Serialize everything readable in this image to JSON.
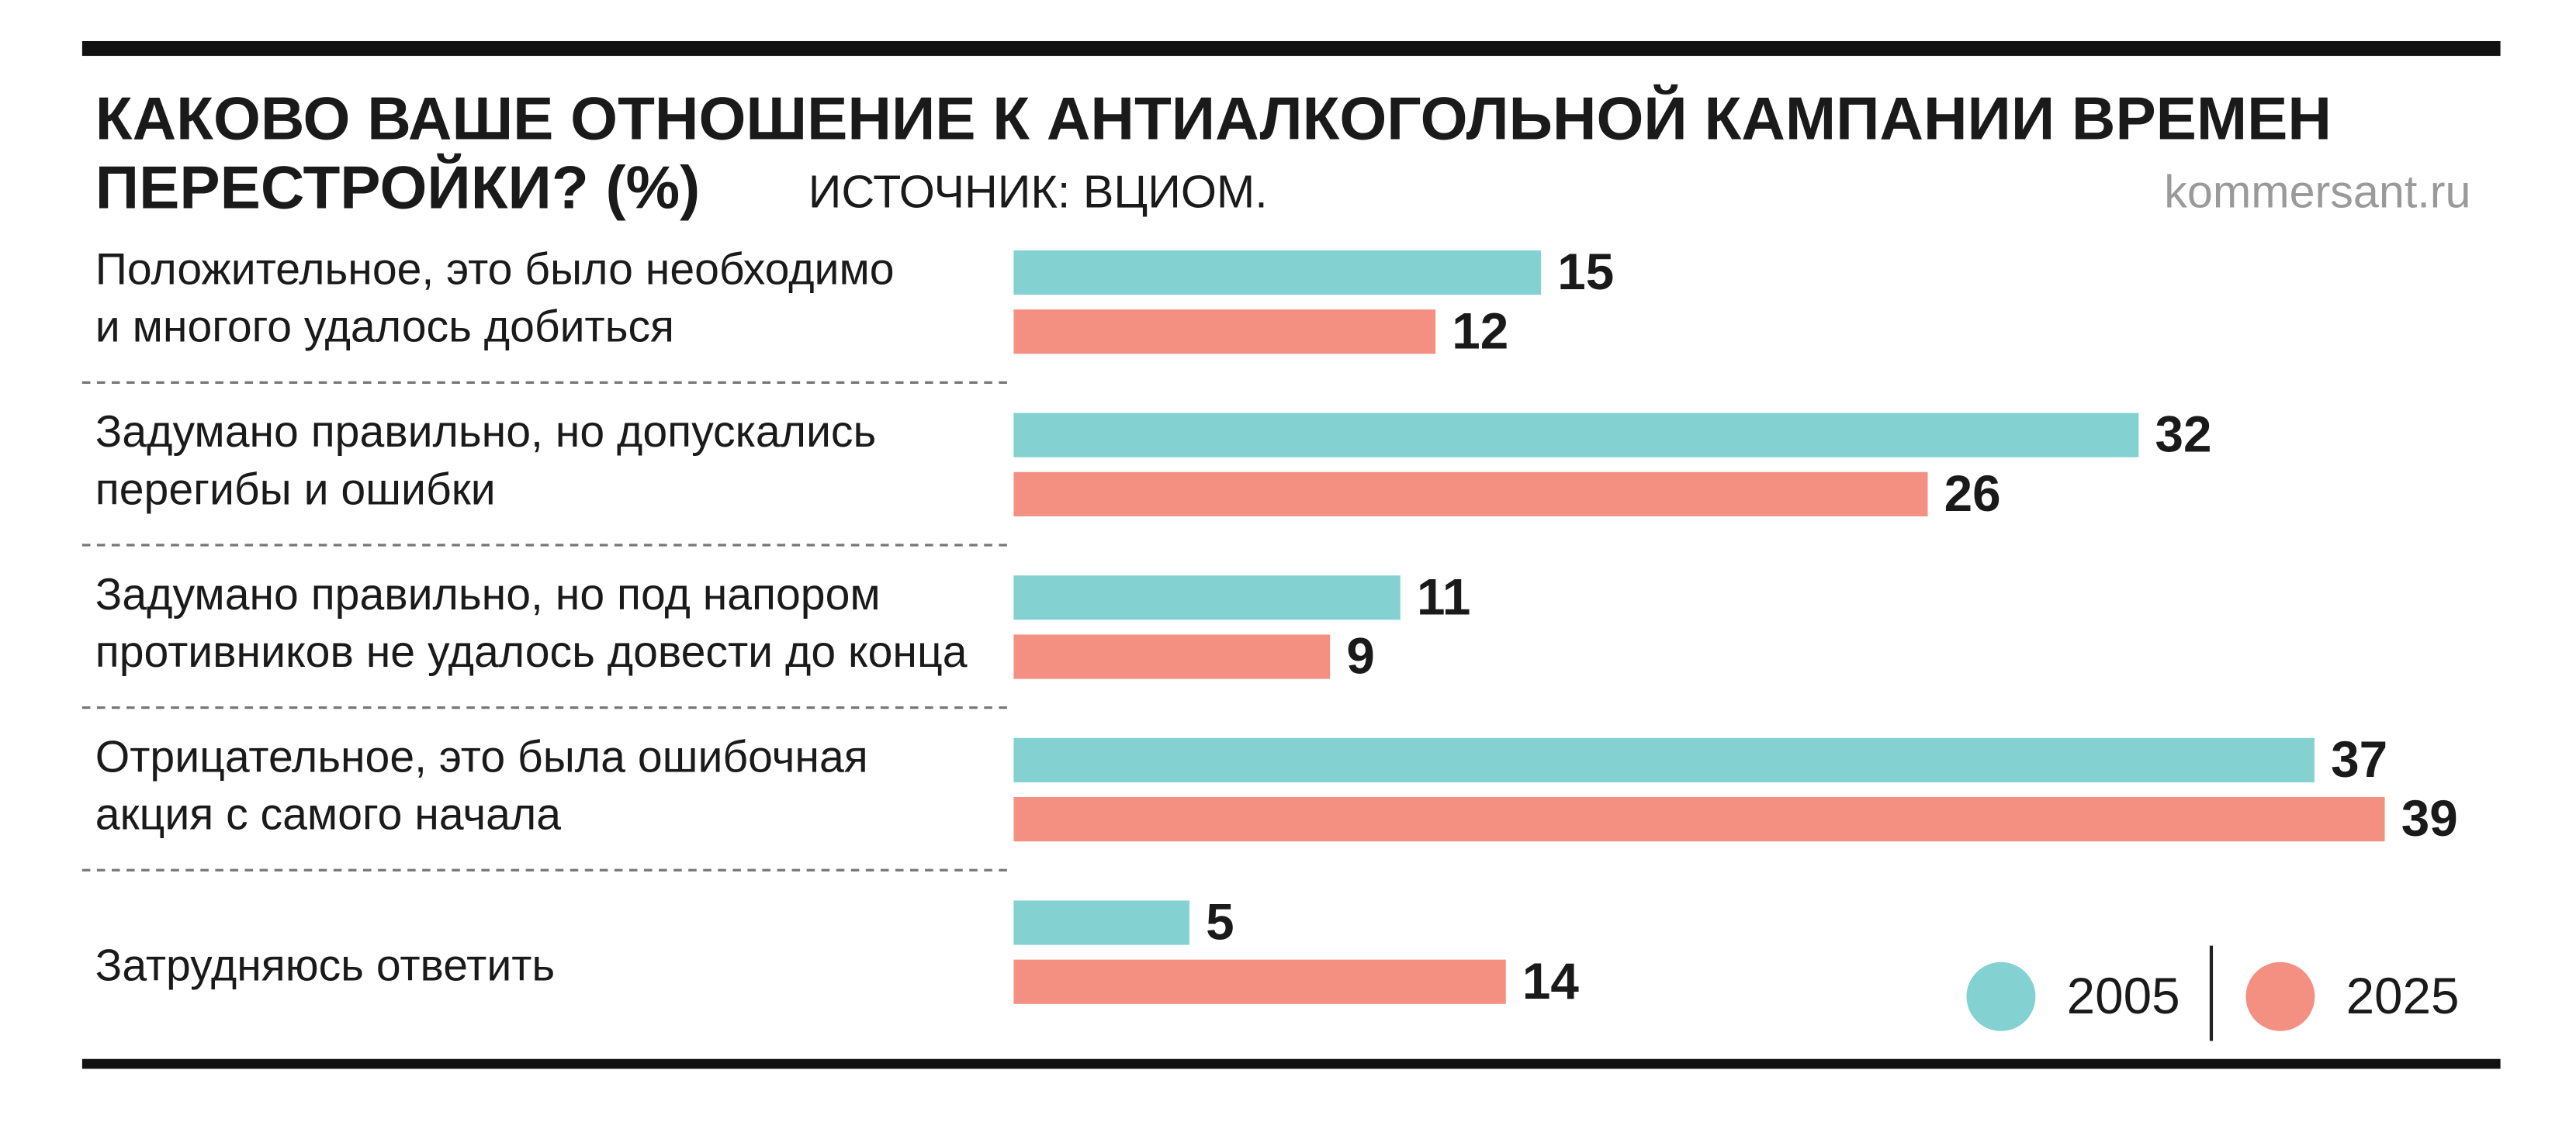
{
  "chart_data": {
    "type": "bar",
    "orientation": "horizontal",
    "title": [
      "КАКОВО ВАШЕ ОТНОШЕНИЕ К АНТИАЛКОГОЛЬНОЙ КАМПАНИИ ВРЕМЕН",
      "ПЕРЕСТРОЙКИ? (%)"
    ],
    "source": "ИСТОЧНИК: ВЦИОМ.",
    "credit": "kommersant.ru",
    "categories": [
      [
        "Положительное, это было необходимо",
        "и многого удалось добиться"
      ],
      [
        "Задумано правильно, но допускались",
        "перегибы и ошибки"
      ],
      [
        "Задумано правильно, но под напором",
        "противников не удалось довести до конца"
      ],
      [
        "Отрицательное, это была ошибочная",
        "акция с самого начала"
      ],
      [
        "Затрудняюсь ответить"
      ]
    ],
    "series": [
      {
        "name": "2005",
        "color": "#84d1d1",
        "values": [
          15,
          32,
          11,
          37,
          5
        ]
      },
      {
        "name": "2025",
        "color": "#f49082",
        "values": [
          12,
          26,
          9,
          39,
          14
        ]
      }
    ],
    "legend": "bottom-right"
  }
}
